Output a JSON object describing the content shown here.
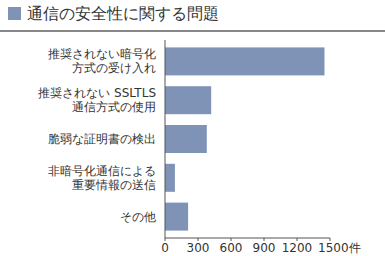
{
  "chart_data": {
    "type": "bar",
    "orientation": "horizontal",
    "title": "通信の安全性に関する問題",
    "categories": [
      "推奨されない暗号化\n方式の受け入れ",
      "推奨されない SSLTLS\n通信方式の使用",
      "脆弱な証明書の検出",
      "非暗号化通信による\n重要情報の送信",
      "その他"
    ],
    "values": [
      1450,
      420,
      380,
      90,
      210
    ],
    "color": "#7f93b7",
    "xlim": [
      0,
      1500
    ],
    "xticks": [
      0,
      300,
      600,
      900,
      1200,
      {
        "value": 1500,
        "label": "1500件"
      }
    ],
    "grid": false
  }
}
